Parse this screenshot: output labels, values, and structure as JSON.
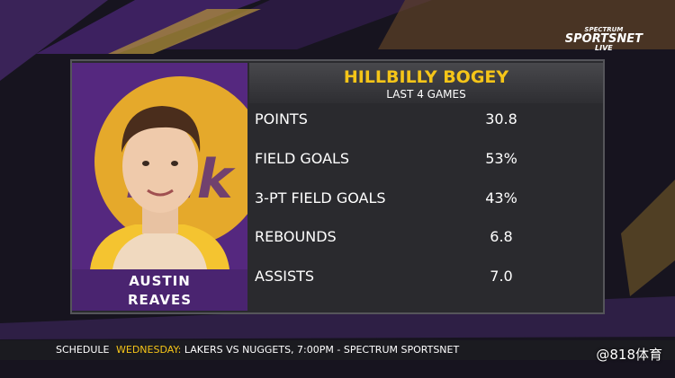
{
  "branding": {
    "top": "SPECTRUM",
    "main": "SPORTSNET",
    "bottom": "LIVE"
  },
  "player": {
    "first_name": "AUSTIN",
    "last_name": "REAVES"
  },
  "panel": {
    "title": "HILLBILLY BOGEY",
    "subtitle": "LAST 4 GAMES"
  },
  "table": {
    "rows": [
      [
        "POINTS",
        "30.8"
      ],
      [
        "FIELD GOALS",
        "53%"
      ],
      [
        "3-PT FIELD GOALS",
        "43%"
      ],
      [
        "REBOUNDS",
        "6.8"
      ],
      [
        "ASSISTS",
        "7.0"
      ]
    ]
  },
  "ticker": {
    "label": "SCHEDULE",
    "day": "WEDNESDAY:",
    "text": "LAKERS VS NUGGETS, 7:00PM - SPECTRUM SPORTSNET"
  },
  "watermark": "@818体育"
}
